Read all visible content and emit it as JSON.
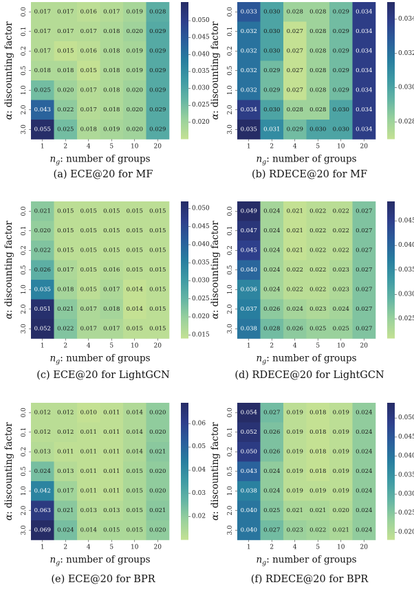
{
  "chart_data": [
    {
      "type": "heatmap",
      "caption": "(a)  ECE@20 for MF",
      "xlabel_var": "n",
      "xlabel_sub": "g",
      "xlabel_rest": ": number of groups",
      "ylabel_var": "α",
      "ylabel_rest": ": discounting factor",
      "x_categories": [
        "1",
        "2",
        "4",
        "5",
        "10",
        "20"
      ],
      "y_categories": [
        "0.0",
        "0.1",
        "0.2",
        "0.5",
        "1.0",
        "2.0",
        "3.0"
      ],
      "values": [
        [
          0.017,
          0.017,
          0.016,
          0.017,
          0.019,
          0.028
        ],
        [
          0.017,
          0.017,
          0.017,
          0.018,
          0.02,
          0.029
        ],
        [
          0.017,
          0.015,
          0.016,
          0.018,
          0.019,
          0.029
        ],
        [
          0.018,
          0.018,
          0.015,
          0.018,
          0.019,
          0.029
        ],
        [
          0.025,
          0.02,
          0.017,
          0.018,
          0.02,
          0.029
        ],
        [
          0.043,
          0.022,
          0.017,
          0.018,
          0.02,
          0.029
        ],
        [
          0.055,
          0.025,
          0.018,
          0.019,
          0.02,
          0.029
        ]
      ],
      "colorbar_range": [
        0.015,
        0.0555
      ],
      "colorbar_ticks": [
        "0.050",
        "0.045",
        "0.040",
        "0.035",
        "0.030",
        "0.025",
        "0.020"
      ]
    },
    {
      "type": "heatmap",
      "caption": "(b)  RDECE@20 for MF",
      "xlabel_var": "n",
      "xlabel_sub": "g",
      "xlabel_rest": ": number of groups",
      "ylabel_var": "α",
      "ylabel_rest": ": discounting factor",
      "x_categories": [
        "1",
        "2",
        "4",
        "5",
        "10",
        "20"
      ],
      "y_categories": [
        "0.0",
        "0.1",
        "0.2",
        "0.5",
        "1.0",
        "2.0",
        "3.0"
      ],
      "values": [
        [
          0.033,
          0.03,
          0.028,
          0.028,
          0.029,
          0.034
        ],
        [
          0.032,
          0.03,
          0.027,
          0.028,
          0.029,
          0.034
        ],
        [
          0.032,
          0.03,
          0.027,
          0.028,
          0.029,
          0.034
        ],
        [
          0.032,
          0.029,
          0.027,
          0.028,
          0.029,
          0.034
        ],
        [
          0.032,
          0.029,
          0.027,
          0.028,
          0.029,
          0.034
        ],
        [
          0.034,
          0.03,
          0.028,
          0.028,
          0.03,
          0.034
        ],
        [
          0.035,
          0.031,
          0.029,
          0.03,
          0.03,
          0.034
        ]
      ],
      "colorbar_range": [
        0.027,
        0.035
      ],
      "colorbar_ticks": [
        "0.034",
        "0.032",
        "0.030",
        "0.028"
      ]
    },
    {
      "type": "heatmap",
      "caption": "(c)  ECE@20 for LightGCN",
      "xlabel_var": "n",
      "xlabel_sub": "g",
      "xlabel_rest": ": number of groups",
      "ylabel_var": "α",
      "ylabel_rest": ": discounting factor",
      "x_categories": [
        "1",
        "2",
        "4",
        "5",
        "10",
        "20"
      ],
      "y_categories": [
        "0.0",
        "0.1",
        "0.2",
        "0.5",
        "1.0",
        "2.0",
        "3.0"
      ],
      "values": [
        [
          0.021,
          0.015,
          0.015,
          0.015,
          0.015,
          0.015
        ],
        [
          0.02,
          0.015,
          0.015,
          0.015,
          0.015,
          0.015
        ],
        [
          0.022,
          0.015,
          0.015,
          0.015,
          0.015,
          0.015
        ],
        [
          0.026,
          0.017,
          0.015,
          0.016,
          0.015,
          0.015
        ],
        [
          0.035,
          0.018,
          0.015,
          0.017,
          0.014,
          0.015
        ],
        [
          0.051,
          0.021,
          0.017,
          0.018,
          0.014,
          0.015
        ],
        [
          0.052,
          0.022,
          0.017,
          0.017,
          0.015,
          0.015
        ]
      ],
      "colorbar_range": [
        0.014,
        0.052
      ],
      "colorbar_ticks": [
        "0.050",
        "0.045",
        "0.040",
        "0.035",
        "0.030",
        "0.025",
        "0.020",
        "0.015"
      ]
    },
    {
      "type": "heatmap",
      "caption": "(d)  RDECE@20 for LightGCN",
      "xlabel_var": "n",
      "xlabel_sub": "g",
      "xlabel_rest": ": number of groups",
      "ylabel_var": "α",
      "ylabel_rest": ": discounting factor",
      "x_categories": [
        "1",
        "2",
        "4",
        "5",
        "10",
        "20"
      ],
      "y_categories": [
        "0.0",
        "0.1",
        "0.2",
        "0.5",
        "1.0",
        "2.0",
        "3.0"
      ],
      "values": [
        [
          0.049,
          0.024,
          0.021,
          0.022,
          0.022,
          0.027
        ],
        [
          0.047,
          0.024,
          0.021,
          0.022,
          0.022,
          0.027
        ],
        [
          0.045,
          0.024,
          0.021,
          0.022,
          0.022,
          0.027
        ],
        [
          0.04,
          0.024,
          0.022,
          0.022,
          0.023,
          0.027
        ],
        [
          0.036,
          0.024,
          0.022,
          0.022,
          0.023,
          0.027
        ],
        [
          0.037,
          0.026,
          0.024,
          0.023,
          0.024,
          0.027
        ],
        [
          0.038,
          0.028,
          0.026,
          0.025,
          0.025,
          0.027
        ]
      ],
      "colorbar_range": [
        0.021,
        0.049
      ],
      "colorbar_ticks": [
        "0.045",
        "0.040",
        "0.035",
        "0.030",
        "0.025"
      ]
    },
    {
      "type": "heatmap",
      "caption": "(e)  ECE@20 for BPR",
      "xlabel_var": "n",
      "xlabel_sub": "g",
      "xlabel_rest": ": number of groups",
      "ylabel_var": "α",
      "ylabel_rest": ": discounting factor",
      "x_categories": [
        "1",
        "2",
        "4",
        "5",
        "10",
        "20"
      ],
      "y_categories": [
        "0.0",
        "0.1",
        "0.2",
        "0.5",
        "1.0",
        "2.0",
        "3.0"
      ],
      "values": [
        [
          0.012,
          0.012,
          0.01,
          0.011,
          0.014,
          0.02
        ],
        [
          0.012,
          0.012,
          0.011,
          0.011,
          0.014,
          0.02
        ],
        [
          0.013,
          0.011,
          0.011,
          0.011,
          0.014,
          0.021
        ],
        [
          0.024,
          0.013,
          0.011,
          0.011,
          0.015,
          0.02
        ],
        [
          0.042,
          0.017,
          0.011,
          0.011,
          0.015,
          0.02
        ],
        [
          0.063,
          0.021,
          0.013,
          0.013,
          0.015,
          0.021
        ],
        [
          0.069,
          0.024,
          0.014,
          0.015,
          0.015,
          0.02
        ]
      ],
      "colorbar_range": [
        0.01,
        0.069
      ],
      "colorbar_ticks": [
        "0.06",
        "0.05",
        "0.04",
        "0.03",
        "0.02"
      ]
    },
    {
      "type": "heatmap",
      "caption": "(f)  RDECE@20 for BPR",
      "xlabel_var": "n",
      "xlabel_sub": "g",
      "xlabel_rest": ": number of groups",
      "ylabel_var": "α",
      "ylabel_rest": ": discounting factor",
      "x_categories": [
        "1",
        "2",
        "4",
        "5",
        "10",
        "20"
      ],
      "y_categories": [
        "0.0",
        "0.1",
        "0.2",
        "0.5",
        "1.0",
        "2.0",
        "3.0"
      ],
      "values": [
        [
          0.054,
          0.027,
          0.019,
          0.018,
          0.019,
          0.024
        ],
        [
          0.052,
          0.026,
          0.019,
          0.018,
          0.019,
          0.024
        ],
        [
          0.05,
          0.026,
          0.019,
          0.018,
          0.019,
          0.024
        ],
        [
          0.043,
          0.024,
          0.019,
          0.018,
          0.019,
          0.024
        ],
        [
          0.038,
          0.024,
          0.019,
          0.019,
          0.019,
          0.024
        ],
        [
          0.04,
          0.025,
          0.021,
          0.021,
          0.02,
          0.024
        ],
        [
          0.04,
          0.027,
          0.023,
          0.022,
          0.021,
          0.024
        ]
      ],
      "colorbar_range": [
        0.018,
        0.054
      ],
      "colorbar_ticks": [
        "0.050",
        "0.045",
        "0.040",
        "0.035",
        "0.030",
        "0.025",
        "0.020"
      ]
    }
  ],
  "colormap": [
    "#c4e193",
    "#9ad19c",
    "#65b5a4",
    "#3e9aa4",
    "#287e9f",
    "#2a5e9b",
    "#2e3f8b",
    "#262c66"
  ]
}
